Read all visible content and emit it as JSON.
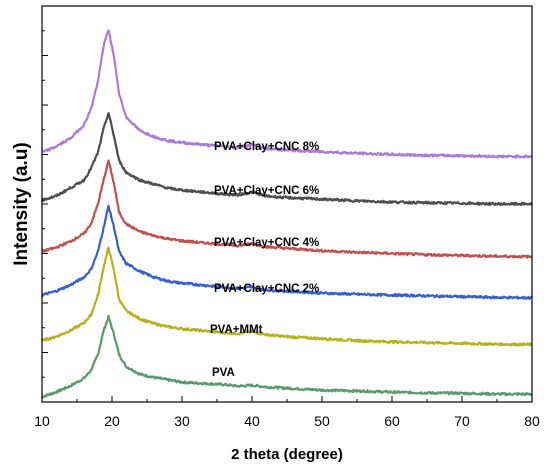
{
  "chart_data": {
    "type": "line",
    "title": "",
    "xlabel": "2 theta (degree)",
    "ylabel": "Intensity (a.u)",
    "xlim": [
      10,
      80
    ],
    "x_ticks": [
      "10",
      "20",
      "30",
      "40",
      "50",
      "60",
      "70",
      "80"
    ],
    "y_ticks_labeled": false,
    "grid": false,
    "legend": "inline labels",
    "peak_x": 19.5,
    "series": [
      {
        "name": "PVA",
        "color": "#5a9a6e",
        "points": [
          [
            10,
            1.3
          ],
          [
            12,
            2.5
          ],
          [
            14,
            4
          ],
          [
            16,
            6
          ],
          [
            17,
            8
          ],
          [
            18,
            12
          ],
          [
            18.8,
            18
          ],
          [
            19.5,
            21.5
          ],
          [
            20.3,
            17
          ],
          [
            21,
            12
          ],
          [
            22,
            9
          ],
          [
            24,
            7
          ],
          [
            26,
            6.2
          ],
          [
            28,
            5.6
          ],
          [
            30,
            5
          ],
          [
            33,
            4.7
          ],
          [
            36,
            4.4
          ],
          [
            38,
            4
          ],
          [
            40,
            4.2
          ],
          [
            42,
            3.8
          ],
          [
            45,
            3.5
          ],
          [
            50,
            3
          ],
          [
            55,
            2.8
          ],
          [
            60,
            2.5
          ],
          [
            65,
            2.3
          ],
          [
            70,
            2.2
          ],
          [
            75,
            2
          ],
          [
            80,
            2
          ]
        ]
      },
      {
        "name": "PVA+MMt",
        "color": "#b5b21a",
        "points": [
          [
            10,
            15.5
          ],
          [
            12,
            16.5
          ],
          [
            14,
            18
          ],
          [
            16,
            20
          ],
          [
            17,
            22
          ],
          [
            18,
            27
          ],
          [
            18.8,
            34
          ],
          [
            19.5,
            39
          ],
          [
            20.3,
            33
          ],
          [
            21,
            26
          ],
          [
            22,
            23
          ],
          [
            24,
            21
          ],
          [
            26,
            19.8
          ],
          [
            28,
            19
          ],
          [
            30,
            18.5
          ],
          [
            33,
            18
          ],
          [
            36,
            17.5
          ],
          [
            38,
            17.3
          ],
          [
            40,
            17.8
          ],
          [
            42,
            17
          ],
          [
            45,
            16.5
          ],
          [
            50,
            16
          ],
          [
            55,
            15.5
          ],
          [
            60,
            15.2
          ],
          [
            65,
            15
          ],
          [
            70,
            14.8
          ],
          [
            75,
            14.6
          ],
          [
            80,
            14.5
          ]
        ]
      },
      {
        "name": "PVA+Clay+CNC 2%",
        "color": "#3a5fcd",
        "points": [
          [
            10,
            27
          ],
          [
            12,
            28
          ],
          [
            14,
            29.5
          ],
          [
            16,
            31.5
          ],
          [
            17,
            33.5
          ],
          [
            18,
            38
          ],
          [
            18.8,
            44
          ],
          [
            19.5,
            49.5
          ],
          [
            20.3,
            44
          ],
          [
            21,
            38
          ],
          [
            22,
            35
          ],
          [
            24,
            33
          ],
          [
            26,
            31.5
          ],
          [
            28,
            30.5
          ],
          [
            30,
            30
          ],
          [
            33,
            29.5
          ],
          [
            36,
            29
          ],
          [
            38,
            28.7
          ],
          [
            40,
            29
          ],
          [
            42,
            28.3
          ],
          [
            45,
            28
          ],
          [
            50,
            27.5
          ],
          [
            55,
            27.2
          ],
          [
            60,
            27
          ],
          [
            65,
            26.8
          ],
          [
            70,
            26.6
          ],
          [
            75,
            26.4
          ],
          [
            80,
            26.3
          ]
        ]
      },
      {
        "name": "PVA+Clay+CNC 4%",
        "color": "#c0504d",
        "points": [
          [
            10,
            38
          ],
          [
            12,
            39
          ],
          [
            14,
            40.5
          ],
          [
            16,
            42.5
          ],
          [
            17,
            45
          ],
          [
            18,
            50
          ],
          [
            18.8,
            56
          ],
          [
            19.5,
            61
          ],
          [
            20.3,
            55
          ],
          [
            21,
            48
          ],
          [
            22,
            45
          ],
          [
            24,
            43
          ],
          [
            26,
            42
          ],
          [
            28,
            41.2
          ],
          [
            30,
            40.7
          ],
          [
            33,
            40.2
          ],
          [
            36,
            39.8
          ],
          [
            38,
            39.5
          ],
          [
            40,
            40
          ],
          [
            42,
            39.2
          ],
          [
            45,
            38.8
          ],
          [
            50,
            38.2
          ],
          [
            55,
            37.8
          ],
          [
            60,
            37.5
          ],
          [
            65,
            37.2
          ],
          [
            70,
            37
          ],
          [
            75,
            36.8
          ],
          [
            80,
            36.7
          ]
        ]
      },
      {
        "name": "PVA+Clay+CNC 6%",
        "color": "#4d4d4d",
        "points": [
          [
            10,
            51
          ],
          [
            12,
            52
          ],
          [
            14,
            54
          ],
          [
            16,
            56
          ],
          [
            17,
            59
          ],
          [
            18,
            63
          ],
          [
            18.8,
            69
          ],
          [
            19.5,
            73
          ],
          [
            20.3,
            67
          ],
          [
            21,
            61
          ],
          [
            22,
            58
          ],
          [
            24,
            56
          ],
          [
            26,
            55
          ],
          [
            28,
            54
          ],
          [
            30,
            53.5
          ],
          [
            33,
            53
          ],
          [
            36,
            52.5
          ],
          [
            38,
            52.3
          ],
          [
            40,
            53
          ],
          [
            42,
            52
          ],
          [
            45,
            51.6
          ],
          [
            50,
            51.2
          ],
          [
            55,
            50.8
          ],
          [
            60,
            50.5
          ],
          [
            65,
            50.3
          ],
          [
            70,
            50.2
          ],
          [
            75,
            50
          ],
          [
            80,
            50
          ]
        ]
      },
      {
        "name": "PVA+Clay+CNC 8%",
        "color": "#a97bd6",
        "points": [
          [
            10,
            63
          ],
          [
            12,
            64.5
          ],
          [
            14,
            66.5
          ],
          [
            16,
            70
          ],
          [
            17,
            74
          ],
          [
            18,
            81
          ],
          [
            18.8,
            90
          ],
          [
            19.5,
            94
          ],
          [
            20.3,
            87
          ],
          [
            21,
            78
          ],
          [
            22,
            72
          ],
          [
            24,
            68.5
          ],
          [
            26,
            67
          ],
          [
            28,
            66
          ],
          [
            30,
            65.5
          ],
          [
            33,
            65
          ],
          [
            36,
            64.5
          ],
          [
            38,
            64.3
          ],
          [
            40,
            65
          ],
          [
            42,
            64
          ],
          [
            45,
            63.6
          ],
          [
            50,
            63.2
          ],
          [
            55,
            62.8
          ],
          [
            60,
            62.5
          ],
          [
            65,
            62.3
          ],
          [
            70,
            62.2
          ],
          [
            75,
            62
          ],
          [
            80,
            62
          ]
        ]
      }
    ]
  }
}
